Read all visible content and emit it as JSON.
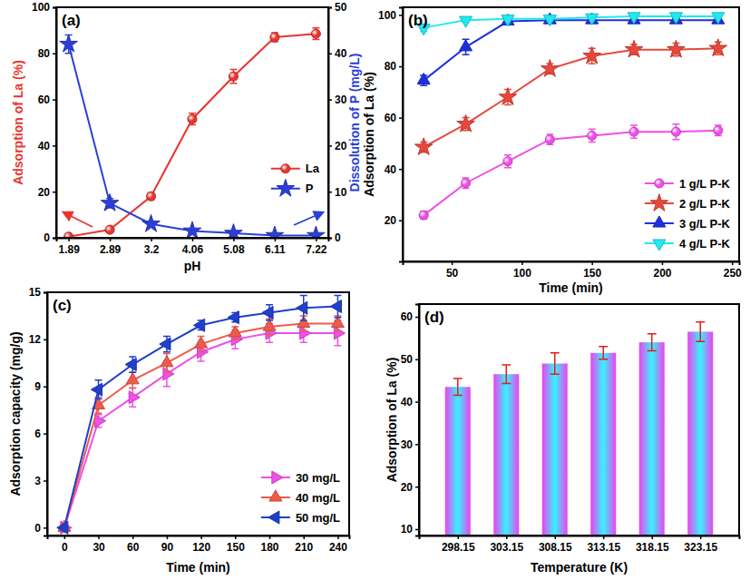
{
  "chart_data": [
    {
      "type": "line",
      "title": "(a)",
      "x_label": "pH",
      "y_label": "Adsorption of La (%)",
      "y2_label": "Dissolution of P (mg/L)",
      "categories": [
        "1.89",
        "2.89",
        "3.2",
        "4.06",
        "5.08",
        "6.11",
        "7.22"
      ],
      "ylim": [
        0,
        100
      ],
      "yticks": [
        0,
        20,
        40,
        60,
        80,
        100
      ],
      "y2lim": [
        0,
        50
      ],
      "y2ticks": [
        0,
        10,
        20,
        30,
        40,
        50
      ],
      "grid": false,
      "legend": "right",
      "series": [
        {
          "name": "La",
          "color": "#E8352E",
          "marker": "circle",
          "values": [
            0.5,
            3.5,
            18,
            51.5,
            70,
            87,
            88.5
          ],
          "errors": [
            0.3,
            0.5,
            1.5,
            2.5,
            3,
            2,
            2.5
          ]
        },
        {
          "name": "P",
          "color": "#2B3FD6",
          "marker": "star",
          "axis": "y2",
          "values": [
            42,
            7.5,
            3,
            1.5,
            1,
            0.5,
            0.5
          ],
          "errors": [
            2,
            1,
            0.3,
            0.2,
            0.2,
            0.1,
            0.1
          ]
        }
      ]
    },
    {
      "type": "line",
      "title": "(b)",
      "x_label": "Time (min)",
      "y_label": "Adsorption of La (%)",
      "x": [
        30,
        60,
        90,
        120,
        150,
        180,
        210,
        240
      ],
      "xlim": [
        15,
        255
      ],
      "xticks": [
        50,
        100,
        150,
        200,
        250
      ],
      "ylim": [
        4,
        103
      ],
      "yticks": [
        20,
        40,
        60,
        80,
        100
      ],
      "grid": false,
      "legend": "lower right",
      "series": [
        {
          "name": "1 g/L P-K",
          "color": "#F04FE8",
          "marker": "circle",
          "values": [
            22,
            34.5,
            43,
            51.5,
            53,
            54.5,
            54.5,
            55
          ],
          "errors": [
            1.5,
            2,
            2.5,
            2,
            2.5,
            2.5,
            3,
            2
          ]
        },
        {
          "name": "2 g/L P-K",
          "color": "#E8483B",
          "marker": "star",
          "values": [
            48.5,
            57.5,
            68,
            79,
            84,
            86.5,
            86.5,
            87
          ],
          "errors": [
            2,
            2.5,
            3,
            2,
            3,
            2,
            2.5,
            2.5
          ]
        },
        {
          "name": "3 g/L P-K",
          "color": "#1F2FE0",
          "marker": "triangle-up",
          "values": [
            74.5,
            87.5,
            97.5,
            98,
            98,
            98,
            98,
            98
          ],
          "errors": [
            2,
            3,
            1,
            1,
            0.5,
            0.5,
            0.5,
            0.5
          ]
        },
        {
          "name": "4 g/L P-K",
          "color": "#22E8F0",
          "marker": "triangle-down",
          "values": [
            95,
            98,
            98.5,
            98.5,
            99,
            99.5,
            99.5,
            99.5
          ],
          "errors": [
            1.5,
            0.8,
            0.5,
            0.5,
            0.5,
            0.5,
            0.5,
            0.5
          ]
        }
      ]
    },
    {
      "type": "line",
      "title": "(c)",
      "x_label": "Time (min)",
      "y_label": "Adsorption capacity (mg/g)",
      "x": [
        0,
        30,
        60,
        90,
        120,
        150,
        180,
        210,
        240
      ],
      "xlim": [
        -15,
        250
      ],
      "xticks": [
        0,
        30,
        60,
        90,
        120,
        150,
        180,
        210,
        240
      ],
      "ylim": [
        -0.5,
        15
      ],
      "yticks": [
        0,
        3,
        6,
        9,
        12,
        15
      ],
      "grid": false,
      "legend": "lower right",
      "series": [
        {
          "name": "30 mg/L",
          "color": "#F04FE8",
          "marker": "triangle-right",
          "values": [
            0,
            6.8,
            8.3,
            9.8,
            11.2,
            12,
            12.4,
            12.4,
            12.4
          ],
          "errors": [
            0,
            0.4,
            0.6,
            0.8,
            0.6,
            0.6,
            0.6,
            0.6,
            0.8
          ]
        },
        {
          "name": "40 mg/L",
          "color": "#F05A4A",
          "marker": "triangle-up",
          "values": [
            0,
            7.8,
            9.4,
            10.5,
            11.7,
            12.4,
            12.8,
            13,
            13
          ],
          "errors": [
            0,
            0.5,
            0.5,
            0.6,
            0.5,
            0.4,
            0.5,
            0.5,
            0.5
          ]
        },
        {
          "name": "50 mg/L",
          "color": "#1F3FCC",
          "marker": "triangle-left",
          "values": [
            0,
            8.8,
            10.4,
            11.7,
            12.9,
            13.4,
            13.7,
            14,
            14.1
          ],
          "errors": [
            0,
            0.6,
            0.5,
            0.5,
            0.3,
            0.3,
            0.5,
            0.8,
            0.7
          ]
        }
      ]
    },
    {
      "type": "bar",
      "title": "(d)",
      "x_label": "Temperature (K)",
      "y_label": "Adsorption of La (%)",
      "categories": [
        "298.15",
        "303.15",
        "308.15",
        "313.15",
        "318.15",
        "323.15"
      ],
      "values": [
        43.5,
        46.5,
        49,
        51.5,
        54,
        56.5
      ],
      "errors": [
        2,
        2.2,
        2.5,
        1.5,
        2,
        2.3
      ],
      "color": "#F040F0",
      "ylim": [
        8.5,
        63
      ],
      "yticks": [
        10,
        20,
        30,
        40,
        50,
        60
      ],
      "grid": false
    }
  ]
}
